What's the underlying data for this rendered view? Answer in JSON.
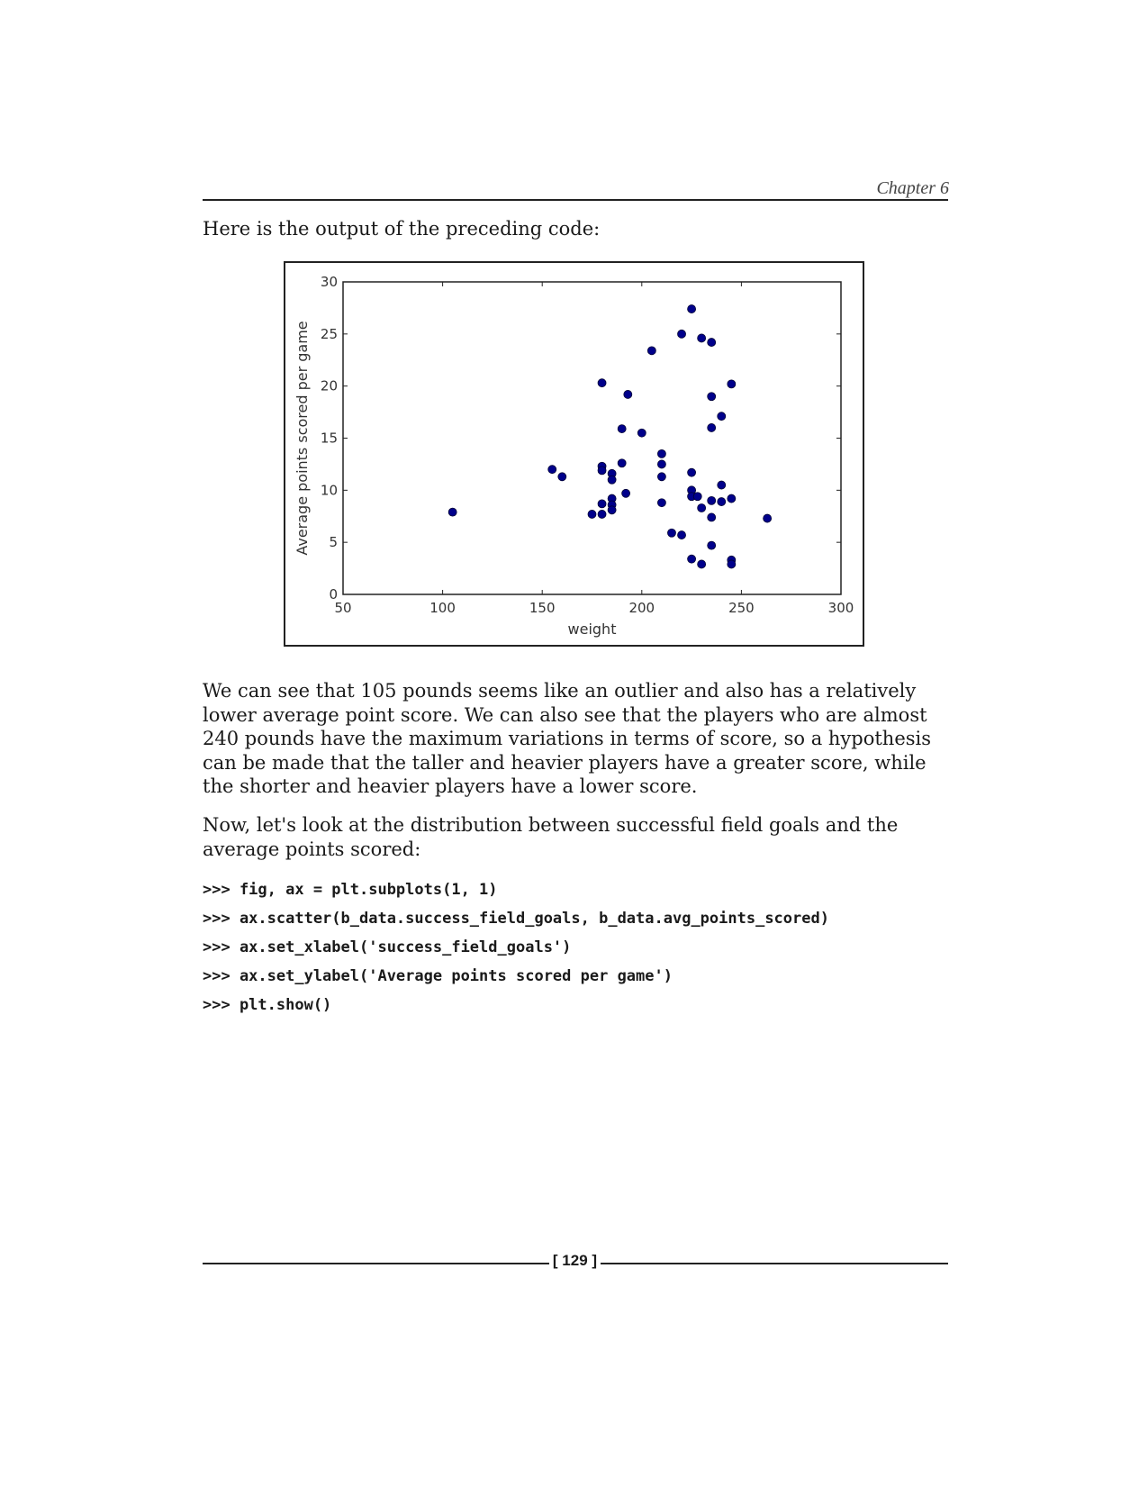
{
  "header": {
    "chapter": "Chapter 6"
  },
  "intro_text": "Here is the output of the preceding code:",
  "chart_data": {
    "type": "scatter",
    "xlabel": "weight",
    "ylabel": "Average points scored per game",
    "xlim": [
      50,
      300
    ],
    "ylim": [
      0,
      30
    ],
    "x_ticks": [
      "50",
      "100",
      "150",
      "200",
      "250",
      "300"
    ],
    "y_ticks": [
      "0",
      "5",
      "10",
      "15",
      "20",
      "25",
      "30"
    ],
    "marker_color": "#00008b",
    "grid": false,
    "points": [
      {
        "x": 105,
        "y": 7.9
      },
      {
        "x": 155,
        "y": 12.0
      },
      {
        "x": 160,
        "y": 11.3
      },
      {
        "x": 175,
        "y": 7.7
      },
      {
        "x": 180,
        "y": 20.3
      },
      {
        "x": 180,
        "y": 12.3
      },
      {
        "x": 180,
        "y": 11.9
      },
      {
        "x": 180,
        "y": 8.7
      },
      {
        "x": 180,
        "y": 7.7
      },
      {
        "x": 185,
        "y": 11.6
      },
      {
        "x": 185,
        "y": 11.0
      },
      {
        "x": 185,
        "y": 9.2
      },
      {
        "x": 185,
        "y": 8.6
      },
      {
        "x": 185,
        "y": 8.1
      },
      {
        "x": 190,
        "y": 15.9
      },
      {
        "x": 190,
        "y": 12.6
      },
      {
        "x": 192,
        "y": 9.7
      },
      {
        "x": 193,
        "y": 19.2
      },
      {
        "x": 200,
        "y": 15.5
      },
      {
        "x": 205,
        "y": 23.4
      },
      {
        "x": 210,
        "y": 13.5
      },
      {
        "x": 210,
        "y": 12.5
      },
      {
        "x": 210,
        "y": 11.3
      },
      {
        "x": 210,
        "y": 8.8
      },
      {
        "x": 215,
        "y": 5.9
      },
      {
        "x": 220,
        "y": 25.0
      },
      {
        "x": 220,
        "y": 5.7
      },
      {
        "x": 225,
        "y": 27.4
      },
      {
        "x": 225,
        "y": 11.7
      },
      {
        "x": 225,
        "y": 10.0
      },
      {
        "x": 225,
        "y": 9.4
      },
      {
        "x": 225,
        "y": 3.4
      },
      {
        "x": 228,
        "y": 9.4
      },
      {
        "x": 230,
        "y": 24.6
      },
      {
        "x": 230,
        "y": 8.3
      },
      {
        "x": 230,
        "y": 2.9
      },
      {
        "x": 235,
        "y": 24.2
      },
      {
        "x": 235,
        "y": 19.0
      },
      {
        "x": 235,
        "y": 16.0
      },
      {
        "x": 235,
        "y": 9.0
      },
      {
        "x": 235,
        "y": 7.4
      },
      {
        "x": 235,
        "y": 4.7
      },
      {
        "x": 240,
        "y": 17.1
      },
      {
        "x": 240,
        "y": 10.5
      },
      {
        "x": 240,
        "y": 8.9
      },
      {
        "x": 245,
        "y": 20.2
      },
      {
        "x": 245,
        "y": 9.2
      },
      {
        "x": 245,
        "y": 3.3
      },
      {
        "x": 245,
        "y": 2.9
      },
      {
        "x": 263,
        "y": 7.3
      }
    ]
  },
  "paragraph_1": "We can see that 105 pounds seems like an outlier and also has a relatively lower average point score. We can also see that the players who are almost 240 pounds have the maximum variations in terms of score, so a hypothesis can be made that the taller and heavier players have a greater score, while the shorter and heavier players have a lower score.",
  "paragraph_2": "Now, let's look at the distribution between successful field goals and the average points scored:",
  "code_lines": [
    ">>> fig, ax = plt.subplots(1, 1)",
    ">>> ax.scatter(b_data.success_field_goals, b_data.avg_points_scored)",
    ">>> ax.set_xlabel('success_field_goals')",
    ">>> ax.set_ylabel('Average points scored per game')",
    ">>> plt.show()"
  ],
  "footer": {
    "page_number": "[ 129 ]"
  }
}
